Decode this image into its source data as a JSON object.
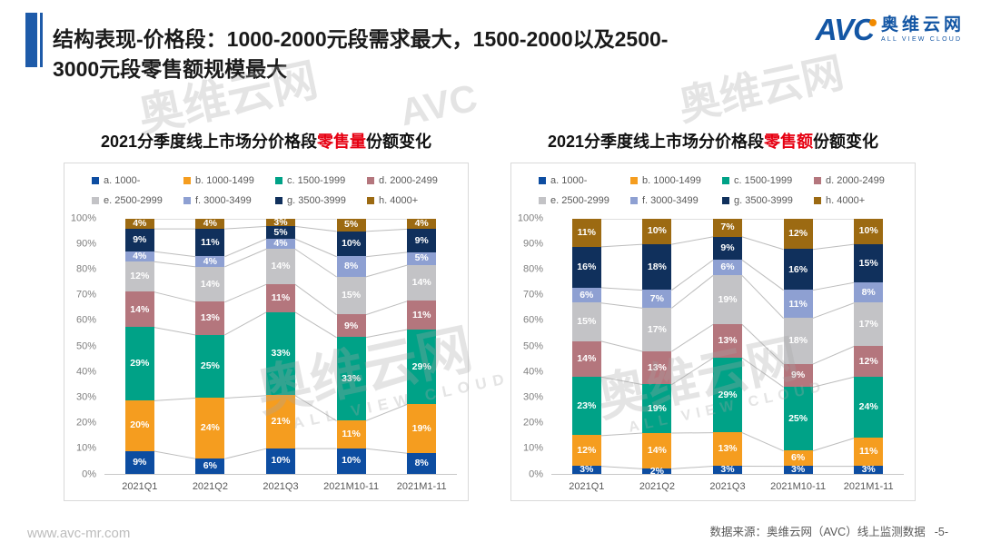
{
  "page": {
    "title_line1": "结构表现-价格段：1000-2000元段需求最大，1500-2000以及2500-",
    "title_line2": "3000元段零售额规模最大",
    "footer": {
      "website": "www.avc-mr.com",
      "source": "数据来源：奥维云网（AVC）线上监测数据",
      "page_number": "-5-"
    }
  },
  "logo": {
    "avc": "AVC",
    "name_cn": "奥维云网",
    "tagline": "ALL VIEW CLOUD"
  },
  "watermark": {
    "cn": "奥维云网",
    "en": "ALL VIEW CLOUD",
    "avc": "AVC"
  },
  "colors": {
    "accent_blue": "#1e5ba9",
    "highlight_red": "#e60012",
    "logo_blue": "#1356a4",
    "logo_orange": "#f18a00",
    "panel_border": "#d9d9d9",
    "connector_line": "#bdbdbd",
    "axis_text": "#7f7f7f"
  },
  "chart_data": [
    {
      "type": "bar",
      "stacked": true,
      "title": {
        "prefix": "2021分季度线上市场分价格段",
        "highlight": "零售量",
        "suffix": "份额变化"
      },
      "categories": [
        "2021Q1",
        "2021Q2",
        "2021Q3",
        "2021M10-11",
        "2021M1-11"
      ],
      "series": [
        {
          "name": "a. 1000-",
          "color": "#0d4da1",
          "values": [
            9,
            6,
            10,
            10,
            8
          ]
        },
        {
          "name": "b. 1000-1499",
          "color": "#f59d1f",
          "values": [
            20,
            24,
            21,
            11,
            19
          ]
        },
        {
          "name": "c. 1500-1999",
          "color": "#00a287",
          "values": [
            29,
            25,
            33,
            33,
            29
          ]
        },
        {
          "name": "d. 2000-2499",
          "color": "#b4767d",
          "values": [
            14,
            13,
            11,
            9,
            11
          ]
        },
        {
          "name": "e. 2500-2999",
          "color": "#c3c3c6",
          "values": [
            12,
            14,
            14,
            15,
            14
          ]
        },
        {
          "name": "f. 3000-3499",
          "color": "#8ea0d2",
          "values": [
            4,
            4,
            4,
            8,
            5
          ]
        },
        {
          "name": "g. 3500-3999",
          "color": "#10305c",
          "values": [
            9,
            11,
            5,
            10,
            9
          ]
        },
        {
          "name": "h. 4000+",
          "color": "#9c6a12",
          "values": [
            4,
            4,
            3,
            5,
            4
          ]
        }
      ],
      "unit": "%",
      "ylim": [
        0,
        100
      ],
      "ytick_step": 10,
      "legend_position": "top",
      "grid": false
    },
    {
      "type": "bar",
      "stacked": true,
      "title": {
        "prefix": "2021分季度线上市场分价格段",
        "highlight": "零售额",
        "suffix": "份额变化"
      },
      "categories": [
        "2021Q1",
        "2021Q2",
        "2021Q3",
        "2021M10-11",
        "2021M1-11"
      ],
      "series": [
        {
          "name": "a. 1000-",
          "color": "#0d4da1",
          "values": [
            3,
            2,
            3,
            3,
            3
          ]
        },
        {
          "name": "b. 1000-1499",
          "color": "#f59d1f",
          "values": [
            12,
            14,
            13,
            6,
            11
          ]
        },
        {
          "name": "c. 1500-1999",
          "color": "#00a287",
          "values": [
            23,
            19,
            29,
            25,
            24
          ]
        },
        {
          "name": "d. 2000-2499",
          "color": "#b4767d",
          "values": [
            14,
            13,
            13,
            9,
            12
          ]
        },
        {
          "name": "e. 2500-2999",
          "color": "#c3c3c6",
          "values": [
            15,
            17,
            19,
            18,
            17
          ]
        },
        {
          "name": "f. 3000-3499",
          "color": "#8ea0d2",
          "values": [
            6,
            7,
            6,
            11,
            8
          ]
        },
        {
          "name": "g. 3500-3999",
          "color": "#10305c",
          "values": [
            16,
            18,
            9,
            16,
            15
          ]
        },
        {
          "name": "h. 4000+",
          "color": "#9c6a12",
          "values": [
            11,
            10,
            7,
            12,
            10
          ]
        }
      ],
      "unit": "%",
      "ylim": [
        0,
        100
      ],
      "ytick_step": 10,
      "legend_position": "top",
      "grid": false
    }
  ]
}
